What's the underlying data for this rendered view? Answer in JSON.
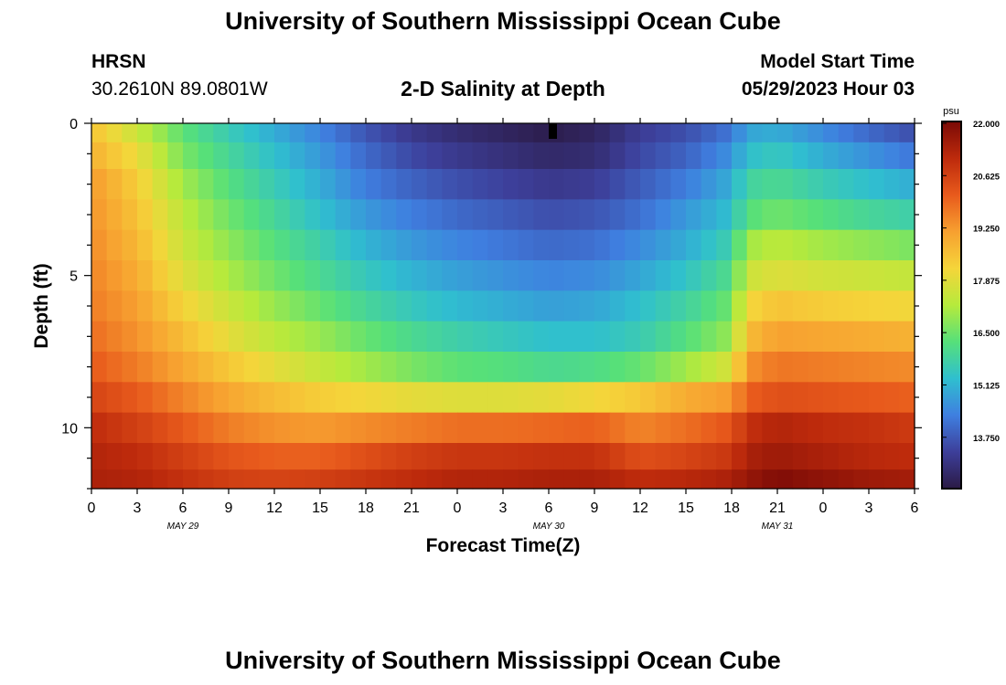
{
  "page": {
    "title_top": "University of Southern Mississippi Ocean Cube",
    "title_bottom": "University of Southern Mississippi Ocean Cube",
    "station": "HRSN",
    "coords": "30.2610N  89.0801W",
    "chart_title": "2-D Salinity at Depth",
    "model_start_label": "Model Start Time",
    "model_start_value": "05/29/2023 Hour 03"
  },
  "colors": {
    "colormap": [
      "#2b1a45",
      "#3d3f9a",
      "#3f7fe0",
      "#2fbfcf",
      "#56e07a",
      "#b6ea3c",
      "#f5d53a",
      "#f7a030",
      "#e85a1c",
      "#bd2a0c",
      "#7a0a06"
    ]
  },
  "chart_data": {
    "type": "heatmap",
    "title": "2-D Salinity at Depth",
    "xlabel": "Forecast Time(Z)",
    "ylabel": "Depth (ft)",
    "x_ticks": [
      "0",
      "3",
      "6",
      "9",
      "12",
      "15",
      "18",
      "21",
      "0",
      "3",
      "6",
      "9",
      "12",
      "15",
      "18",
      "21",
      "0",
      "3",
      "6"
    ],
    "date_labels": [
      {
        "label": "MAY 29",
        "hour_index": 6
      },
      {
        "label": "MAY 30",
        "hour_index": 30
      },
      {
        "label": "MAY 31",
        "hour_index": 45
      }
    ],
    "x_hours": [
      0,
      54
    ],
    "y_ticks": [
      0,
      5,
      10
    ],
    "ylim": [
      0,
      12
    ],
    "depth_levels": [
      0.25,
      1.0,
      2.0,
      3.0,
      4.0,
      5.0,
      6.0,
      7.0,
      8.0,
      9.0,
      10.0,
      11.0,
      11.75
    ],
    "colorbar": {
      "unit": "psu",
      "min": 12.4,
      "max": 22.0,
      "labels": [
        "22.000",
        "20.625",
        "19.250",
        "17.875",
        "16.500",
        "15.125",
        "13.750"
      ]
    },
    "profile_hours": [
      0,
      3,
      6,
      9,
      12,
      15,
      18,
      21,
      24,
      27,
      30,
      33,
      36,
      39,
      42,
      43,
      45,
      48,
      51,
      54
    ],
    "values": [
      [
        18.5,
        17.5,
        16.3,
        15.6,
        15.0,
        14.4,
        13.7,
        13.2,
        12.9,
        12.7,
        12.5,
        12.7,
        13.3,
        13.6,
        14.2,
        14.9,
        15.0,
        14.5,
        14.0,
        13.6
      ],
      [
        18.8,
        18.0,
        16.6,
        15.9,
        15.3,
        14.7,
        14.0,
        13.5,
        13.2,
        13.0,
        12.8,
        12.9,
        13.5,
        13.9,
        14.6,
        15.3,
        15.5,
        15.0,
        14.6,
        14.2
      ],
      [
        19.2,
        18.3,
        17.0,
        16.2,
        15.6,
        15.0,
        14.3,
        13.9,
        13.6,
        13.4,
        13.2,
        13.3,
        13.8,
        14.3,
        15.0,
        15.8,
        16.0,
        15.6,
        15.3,
        15.0
      ],
      [
        19.3,
        18.5,
        17.3,
        16.5,
        15.9,
        15.3,
        14.7,
        14.3,
        14.0,
        13.8,
        13.6,
        13.7,
        14.1,
        14.7,
        15.3,
        16.2,
        16.5,
        16.2,
        15.9,
        15.7
      ],
      [
        19.4,
        18.7,
        17.5,
        16.8,
        16.2,
        15.7,
        15.1,
        14.7,
        14.4,
        14.2,
        14.0,
        14.1,
        14.5,
        15.0,
        15.7,
        17.0,
        17.3,
        17.0,
        16.8,
        16.6
      ],
      [
        19.5,
        18.9,
        17.8,
        17.1,
        16.5,
        16.0,
        15.5,
        15.1,
        14.8,
        14.6,
        14.4,
        14.5,
        14.9,
        15.4,
        16.1,
        17.5,
        17.8,
        17.6,
        17.5,
        17.4
      ],
      [
        19.6,
        19.1,
        18.2,
        17.5,
        16.9,
        16.4,
        15.9,
        15.5,
        15.2,
        15.0,
        14.8,
        14.9,
        15.3,
        15.8,
        16.5,
        18.1,
        18.5,
        18.3,
        18.2,
        18.1
      ],
      [
        19.8,
        19.3,
        18.6,
        17.9,
        17.3,
        16.9,
        16.4,
        16.0,
        15.7,
        15.5,
        15.3,
        15.3,
        15.6,
        16.2,
        16.9,
        18.6,
        19.1,
        19.0,
        18.9,
        18.8
      ],
      [
        20.1,
        19.6,
        19.0,
        18.4,
        17.9,
        17.4,
        17.0,
        16.6,
        16.3,
        16.2,
        16.0,
        16.1,
        16.4,
        17.0,
        17.7,
        19.3,
        19.7,
        19.6,
        19.5,
        19.4
      ],
      [
        20.5,
        20.1,
        19.5,
        19.0,
        18.6,
        18.3,
        18.1,
        17.9,
        17.8,
        17.8,
        17.9,
        18.1,
        18.4,
        18.9,
        19.2,
        20.0,
        20.3,
        20.2,
        20.1,
        20.0
      ],
      [
        21.0,
        20.6,
        20.1,
        19.6,
        19.3,
        19.2,
        19.4,
        19.6,
        19.8,
        19.8,
        19.9,
        20.0,
        19.5,
        19.8,
        20.2,
        20.9,
        21.2,
        21.0,
        20.9,
        20.7
      ],
      [
        21.2,
        21.0,
        20.6,
        20.2,
        20.0,
        20.0,
        20.3,
        20.6,
        20.8,
        20.8,
        20.9,
        20.9,
        20.3,
        20.5,
        20.8,
        21.3,
        21.5,
        21.3,
        21.1,
        21.0
      ],
      [
        21.3,
        21.2,
        20.9,
        20.6,
        20.5,
        20.6,
        20.8,
        21.0,
        21.2,
        21.2,
        21.3,
        21.3,
        21.0,
        21.1,
        21.3,
        21.6,
        21.9,
        21.7,
        21.5,
        21.4
      ]
    ],
    "grid": false
  }
}
